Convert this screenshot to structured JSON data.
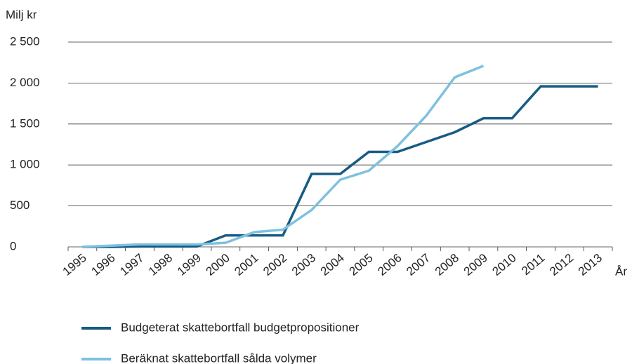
{
  "chart_data": {
    "type": "line",
    "y_label": "Milj kr",
    "x_label": "År",
    "categories": [
      "1995",
      "1996",
      "1997",
      "1998",
      "1999",
      "2000",
      "2001",
      "2002",
      "2003",
      "2004",
      "2005",
      "2006",
      "2007",
      "2008",
      "2009",
      "2010",
      "2011",
      "2012",
      "2013"
    ],
    "series": [
      {
        "name": "Budgeterat skattebortfall budgetpropositioner",
        "color": "#175b84",
        "values": [
          0,
          0,
          5,
          5,
          5,
          140,
          140,
          140,
          890,
          890,
          1160,
          1160,
          1280,
          1400,
          1570,
          1570,
          1960,
          1960,
          1960
        ]
      },
      {
        "name": "Beräknat skattebortfall sålda volymer",
        "color": "#7ec1df",
        "values": [
          0,
          15,
          30,
          30,
          30,
          50,
          180,
          210,
          450,
          820,
          930,
          1230,
          1600,
          2070,
          2210,
          null,
          null,
          null,
          null
        ]
      }
    ],
    "ylim": [
      0,
      2500
    ],
    "yticks": [
      0,
      500,
      {
        "value": 1000,
        "label": "1 000"
      },
      {
        "value": 1500,
        "label": "1 500"
      },
      {
        "value": 2000,
        "label": "2 000"
      },
      {
        "value": 2500,
        "label": "2 500"
      }
    ],
    "grid": true,
    "legend": "bottom"
  }
}
